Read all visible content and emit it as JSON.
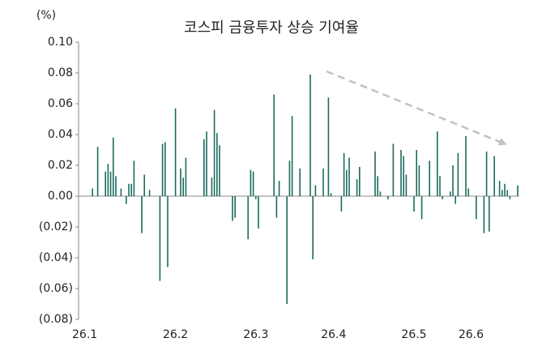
{
  "chart_data": {
    "type": "bar",
    "title": "코스피 금융투자 상승 기여율",
    "y_axis_label": "(%)",
    "categories": [
      "26.1",
      null,
      null,
      null,
      null,
      null,
      null,
      null,
      null,
      null,
      null,
      null,
      null,
      null,
      null,
      null,
      null,
      null,
      null,
      null,
      null,
      null,
      null,
      null,
      null,
      null,
      null,
      null,
      null,
      null,
      null,
      null,
      null,
      null,
      null,
      "26.2",
      null,
      null,
      null,
      null,
      null,
      null,
      null,
      null,
      null,
      null,
      null,
      null,
      null,
      null,
      null,
      null,
      null,
      null,
      null,
      null,
      null,
      null,
      null,
      null,
      null,
      null,
      null,
      null,
      null,
      null,
      "26.3",
      null,
      null,
      null,
      null,
      null,
      null,
      null,
      null,
      null,
      null,
      null,
      null,
      null,
      null,
      null,
      null,
      null,
      null,
      null,
      null,
      null,
      null,
      null,
      null,
      null,
      null,
      null,
      null,
      null,
      "26.4",
      null,
      null,
      null,
      null,
      null,
      null,
      null,
      null,
      null,
      null,
      null,
      null,
      null,
      null,
      null,
      null,
      null,
      null,
      null,
      null,
      null,
      null,
      null,
      null,
      null,
      null,
      null,
      null,
      null,
      null,
      "26.5",
      null,
      null,
      null,
      null,
      null,
      null,
      null,
      null,
      null,
      null,
      null,
      null,
      null,
      null,
      null,
      null,
      null,
      null,
      null,
      null,
      null,
      "26.6",
      null,
      null,
      null,
      null,
      null,
      null,
      null,
      null,
      null,
      null,
      null,
      null,
      null,
      null,
      null,
      null,
      null,
      null
    ],
    "values": [
      0,
      0,
      0,
      0.005,
      0,
      0.032,
      0,
      0,
      0.016,
      0.021,
      0.016,
      0.038,
      0.013,
      0,
      0.005,
      0,
      -0.005,
      0.008,
      0.008,
      0.023,
      0,
      0,
      -0.024,
      0.014,
      0,
      0.004,
      0,
      0,
      0,
      -0.055,
      0.034,
      0.035,
      -0.046,
      0,
      0,
      0.057,
      0,
      0.018,
      0.012,
      0.025,
      0,
      0,
      0,
      0,
      0,
      0,
      0.037,
      0.042,
      0,
      0.012,
      0.056,
      0.041,
      0.033,
      0,
      0,
      0,
      0,
      -0.016,
      -0.014,
      0,
      0,
      0,
      0,
      -0.028,
      0.017,
      0.016,
      -0.002,
      -0.021,
      0,
      0,
      0,
      0,
      0,
      0.066,
      -0.014,
      0.01,
      0,
      0,
      -0.07,
      0.023,
      0.052,
      0,
      0,
      0.018,
      0,
      0,
      0,
      0.079,
      -0.041,
      0.007,
      0,
      0,
      0.018,
      0,
      0.064,
      0.002,
      0,
      0,
      0,
      -0.01,
      0.028,
      0.017,
      0.025,
      0,
      0,
      0.011,
      0.019,
      0,
      0,
      0,
      0,
      0,
      0.029,
      0.013,
      0.003,
      0,
      0,
      -0.002,
      0,
      0.034,
      0,
      0,
      0.03,
      0.026,
      0.014,
      0,
      0,
      -0.01,
      0.03,
      0.02,
      -0.015,
      0,
      0,
      0.023,
      0,
      0,
      0.042,
      0.013,
      -0.002,
      0,
      0,
      0.003,
      0.02,
      -0.005,
      0.028,
      0,
      0,
      0.039,
      0.005,
      0,
      0,
      -0.015,
      0,
      0,
      -0.024,
      0.029,
      -0.023,
      0,
      0.026,
      0,
      0.01,
      0.004,
      0.008,
      0.004,
      -0.002,
      0,
      0,
      0.007
    ],
    "color": "#1b6b5e",
    "ylim": [
      -0.08,
      0.1
    ],
    "yticks": [
      {
        "value": -0.08,
        "label": "(0.08)"
      },
      {
        "value": -0.06,
        "label": "(0.06)"
      },
      {
        "value": -0.04,
        "label": "(0.04)"
      },
      {
        "value": -0.02,
        "label": "(0.02)"
      },
      {
        "value": 0,
        "label": "0.00"
      },
      {
        "value": 0.02,
        "label": "0.02"
      },
      {
        "value": 0.04,
        "label": "0.04"
      },
      {
        "value": 0.06,
        "label": "0.06"
      },
      {
        "value": 0.08,
        "label": "0.08"
      },
      {
        "value": 0.1,
        "label": "0.10"
      }
    ],
    "grid": false
  }
}
